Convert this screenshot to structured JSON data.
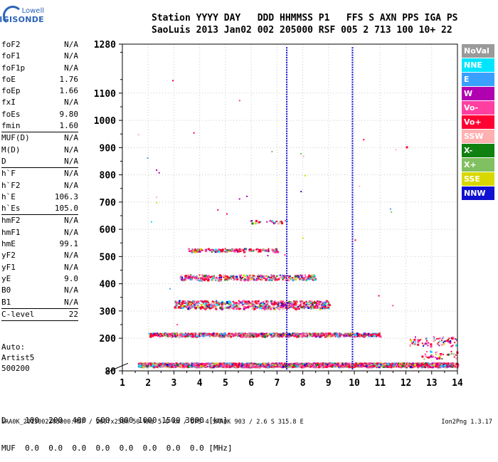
{
  "logo": {
    "line1": "Lowell",
    "line2": "DIGISONDE"
  },
  "header": {
    "row1": "Station YYYY DAY   DDD HHMMSS P1   FFS S AXN PPS IGA PS",
    "row2": "SaoLuis 2013 Jan02 002 205000 RSF 005 2 713 100 10+ 22"
  },
  "params": [
    {
      "name": "foF2",
      "value": "N/A"
    },
    {
      "name": "foF1",
      "value": "N/A"
    },
    {
      "name": "foF1p",
      "value": "N/A"
    },
    {
      "name": "foE",
      "value": "1.76"
    },
    {
      "name": "foEp",
      "value": "1.66"
    },
    {
      "name": "fxI",
      "value": "N/A"
    },
    {
      "name": "foEs",
      "value": "9.80"
    },
    {
      "name": "fmin",
      "value": "1.60",
      "sep": true
    },
    {
      "name": "MUF(D)",
      "value": "N/A"
    },
    {
      "name": "M(D)",
      "value": "N/A"
    },
    {
      "name": "D",
      "value": "N/A",
      "sep": true
    },
    {
      "name": "h`F",
      "value": "N/A"
    },
    {
      "name": "h`F2",
      "value": "N/A"
    },
    {
      "name": "h`E",
      "value": "106.3"
    },
    {
      "name": "h`Es",
      "value": "105.0",
      "sep": true
    },
    {
      "name": "hmF2",
      "value": "N/A"
    },
    {
      "name": "hmF1",
      "value": "N/A"
    },
    {
      "name": "hmE",
      "value": "99.1"
    },
    {
      "name": "yF2",
      "value": "N/A"
    },
    {
      "name": "yF1",
      "value": "N/A"
    },
    {
      "name": "yE",
      "value": "9.0"
    },
    {
      "name": "B0",
      "value": "N/A"
    },
    {
      "name": "B1",
      "value": "N/A",
      "sep": true
    },
    {
      "name": "C-level",
      "value": "22",
      "sep": true
    }
  ],
  "auto": {
    "line1": "Auto:",
    "line2": "Artist5",
    "line3": "500200"
  },
  "dmuf": {
    "d_row": "D    100  200  400  600  800 1000 1500 3000 [km]",
    "muf_row": "MUF  0.0  0.0  0.0  0.0  0.0  0.0  0.0  0.0 [MHz]"
  },
  "footer": {
    "text": "SAA0K_2013002205000.RSF / 260fx256h 50 kHz 5.0 km / DPS-4 SAA0K 903 / 2.6 S 315.8 E",
    "version": "Ion2Png 1.3.17"
  },
  "legend": [
    {
      "label": "NoVal",
      "color": "#9a9a9a"
    },
    {
      "label": "NNE",
      "color": "#00e5ff"
    },
    {
      "label": "E",
      "color": "#3aa0ff"
    },
    {
      "label": "W",
      "color": "#b000b0"
    },
    {
      "label": "Vo-",
      "color": "#ff3fa0"
    },
    {
      "label": "Vo+",
      "color": "#ff0033"
    },
    {
      "label": "SSW",
      "color": "#ffb0b0"
    },
    {
      "label": "X-",
      "color": "#108010"
    },
    {
      "label": "X+",
      "color": "#80c060"
    },
    {
      "label": "SSE",
      "color": "#d8d800"
    },
    {
      "label": "NNW",
      "color": "#1010d0"
    }
  ],
  "chart_data": {
    "type": "scatter",
    "xlabel": "",
    "ylabel": "",
    "xlim": [
      1,
      14
    ],
    "ylim": [
      80,
      1280
    ],
    "xticks": [
      "1",
      "2",
      "3",
      "4",
      "5",
      "6",
      "7",
      "8",
      "9",
      "10",
      "11",
      "12",
      "13",
      "14"
    ],
    "yticks": [
      "80",
      "200",
      "300",
      "400",
      "500",
      "600",
      "700",
      "800",
      "900",
      "1000",
      "1100",
      "1280"
    ],
    "grid": true,
    "series": [
      {
        "name": "Vo+",
        "color": "#ff0033",
        "x_range": [
          1.6,
          14
        ],
        "y": 105
      },
      {
        "name": "Vo+",
        "color": "#ff0033",
        "x_range": [
          2.0,
          11.0
        ],
        "y": 215
      },
      {
        "name": "Vo+",
        "color": "#ff0033",
        "x_range": [
          3.0,
          9.0
        ],
        "y": 325
      },
      {
        "name": "Vo+",
        "color": "#ff0033",
        "x_range": [
          3.0,
          8.5
        ],
        "y": 425
      },
      {
        "name": "Vo+",
        "color": "#ff0033",
        "x_range": [
          3.5,
          7.0
        ],
        "y": 525
      },
      {
        "name": "Vo+",
        "color": "#ff0033",
        "x_range": [
          12.1,
          14
        ],
        "y": 185
      },
      {
        "name": "NNW",
        "color": "#1010d0",
        "x": 7.35,
        "y_range": [
          80,
          1280
        ]
      },
      {
        "name": "NNW",
        "color": "#1010d0",
        "x": 9.9,
        "y_range": [
          80,
          1280
        ]
      }
    ]
  }
}
